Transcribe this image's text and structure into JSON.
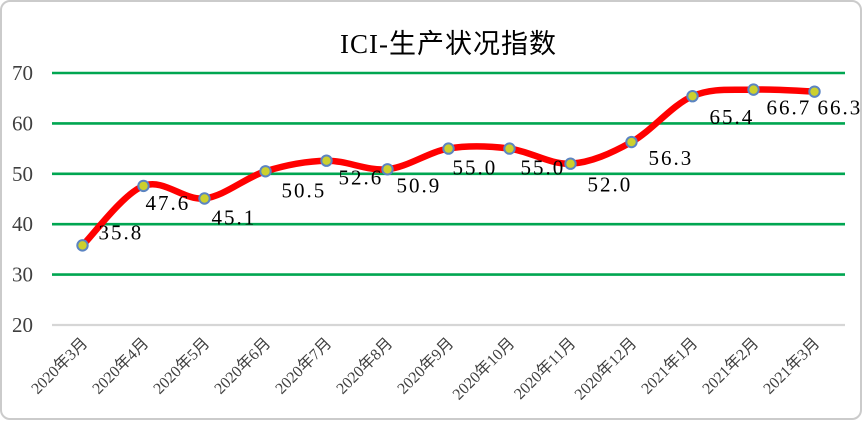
{
  "chart_data": {
    "type": "line",
    "title": "ICI-生产状况指数",
    "categories": [
      "2020年3月",
      "2020年4月",
      "2020年5月",
      "2020年6月",
      "2020年7月",
      "2020年8月",
      "2020年9月",
      "2020年10月",
      "2020年11月",
      "2020年12月",
      "2021年1月",
      "2021年2月",
      "2021年3月"
    ],
    "values": [
      35.8,
      47.6,
      45.1,
      50.5,
      52.6,
      50.9,
      55.0,
      55.0,
      52.0,
      56.3,
      65.4,
      66.7,
      66.3
    ],
    "data_labels": [
      "35.8",
      "47.6",
      "45.1",
      "50.5",
      "52.6",
      "50.9",
      "55.0",
      "55.0",
      "52.0",
      "56.3",
      "65.4",
      "66.7",
      "66.3"
    ],
    "xlabel": "",
    "ylabel": "",
    "ylim": [
      20,
      70
    ],
    "yticks": [
      20,
      30,
      40,
      50,
      60,
      70
    ],
    "grid": true,
    "legend_position": "none",
    "smooth_line": true,
    "colors": {
      "line": "#ff0000",
      "marker_fill": "#ccd02e",
      "marker_stroke": "#5b84c2",
      "gridline": "#00a651",
      "axis_line": "#d6d6d6",
      "tick_label": "#3f3f3f",
      "data_label": "#000000",
      "frame_border": "#cbcbcb"
    }
  }
}
